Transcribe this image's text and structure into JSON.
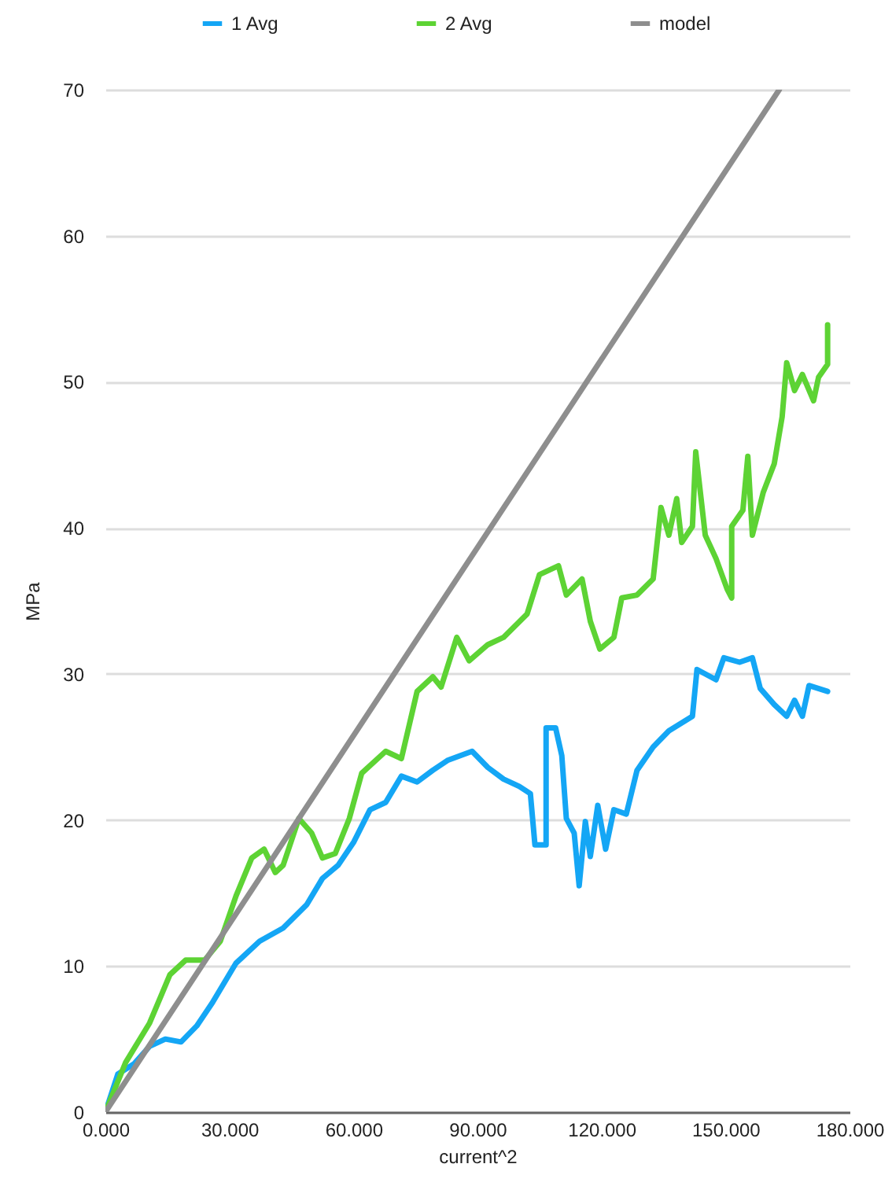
{
  "chart_data": {
    "type": "line",
    "xlabel": "current^2",
    "ylabel": "MPa",
    "xlim": [
      0,
      180
    ],
    "ylim": [
      0,
      70
    ],
    "xticks": [
      {
        "value": 0,
        "label": "0.000"
      },
      {
        "value": 30,
        "label": "30.000"
      },
      {
        "value": 60,
        "label": "60.000"
      },
      {
        "value": 90,
        "label": "90.000"
      },
      {
        "value": 120,
        "label": "120.000"
      },
      {
        "value": 150,
        "label": "150.000"
      },
      {
        "value": 180,
        "label": "180.000"
      }
    ],
    "yticks": [
      0,
      10,
      20,
      30,
      40,
      50,
      60,
      70
    ],
    "grid": "y",
    "legend": "top",
    "line_style": "solid",
    "marker": "none",
    "series": [
      {
        "name": "1 Avg",
        "color": "#14a6f5",
        "x": [
          0,
          3.0,
          6.9,
          10.7,
          14.5,
          18.3,
          22.1,
          25.9,
          31.6,
          37.3,
          43.0,
          48.7,
          52.5,
          56.3,
          60.1,
          64.0,
          67.8,
          71.6,
          75.4,
          79.2,
          82.9,
          88.7,
          92.5,
          96.3,
          100.1,
          102.8,
          103.9,
          106.6,
          106.6,
          108.9,
          110.4,
          111.5,
          113.4,
          114.6,
          116.1,
          117.3,
          119.1,
          121.0,
          123.0,
          126.0,
          128.6,
          132.5,
          136.3,
          142.0,
          143.1,
          147.7,
          149.6,
          153.4,
          156.5,
          158.4,
          161.8,
          164.8,
          166.7,
          168.6,
          170.2,
          174.7
        ],
        "values": [
          0,
          2.6,
          3.3,
          4.5,
          5.0,
          4.8,
          5.9,
          7.5,
          10.2,
          11.7,
          12.6,
          14.2,
          16.0,
          16.9,
          18.5,
          20.7,
          21.2,
          23.0,
          22.6,
          23.4,
          24.1,
          24.7,
          23.6,
          22.8,
          22.3,
          21.8,
          18.3,
          18.3,
          26.3,
          26.3,
          24.4,
          20.1,
          19.1,
          15.5,
          19.9,
          17.5,
          21.0,
          18.0,
          20.7,
          20.4,
          23.4,
          25.0,
          26.1,
          27.1,
          30.3,
          29.6,
          31.1,
          30.8,
          31.1,
          29.0,
          27.9,
          27.1,
          28.2,
          27.1,
          29.2,
          28.8
        ]
      },
      {
        "name": "2 Avg",
        "color": "#5dd334",
        "x": [
          0,
          4.9,
          10.7,
          15.6,
          19.4,
          24.0,
          27.8,
          31.6,
          35.4,
          38.4,
          41.1,
          43.0,
          46.8,
          49.9,
          52.5,
          55.6,
          59.0,
          62.0,
          67.8,
          71.6,
          75.4,
          79.2,
          81.2,
          85.0,
          88.0,
          92.5,
          96.3,
          102.0,
          105.0,
          109.6,
          111.5,
          115.3,
          117.3,
          119.6,
          123.0,
          124.9,
          128.6,
          132.5,
          134.4,
          136.3,
          138.2,
          139.4,
          142.0,
          142.8,
          145.1,
          147.7,
          150.4,
          151.5,
          151.5,
          154.2,
          155.4,
          156.5,
          159.1,
          161.8,
          163.7,
          164.8,
          166.7,
          168.6,
          171.3,
          172.5,
          174.7,
          174.7
        ],
        "values": [
          0,
          3.4,
          6.1,
          9.4,
          10.4,
          10.4,
          11.7,
          14.8,
          17.4,
          18.0,
          16.4,
          16.9,
          20.1,
          19.1,
          17.4,
          17.7,
          20.1,
          23.2,
          24.7,
          24.2,
          28.8,
          29.8,
          29.1,
          32.5,
          30.9,
          32.0,
          32.5,
          34.1,
          36.8,
          37.4,
          35.4,
          36.5,
          33.6,
          31.7,
          32.5,
          35.2,
          35.4,
          36.5,
          41.4,
          39.5,
          42.0,
          39.0,
          40.1,
          45.2,
          39.5,
          37.9,
          35.8,
          35.2,
          40.1,
          41.2,
          44.9,
          39.5,
          42.4,
          44.4,
          47.6,
          51.3,
          49.4,
          50.5,
          48.7,
          50.3,
          51.2,
          53.9
        ]
      },
      {
        "name": "model",
        "color": "#8e8e8e",
        "x": [
          0,
          163
        ],
        "values": [
          0,
          70
        ]
      }
    ]
  }
}
